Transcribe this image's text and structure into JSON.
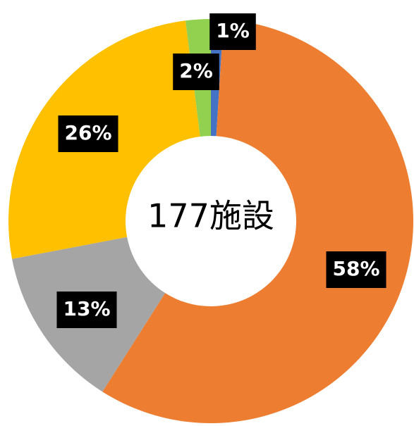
{
  "chart_data": {
    "type": "donut",
    "center_label": "177施設",
    "categories": [
      null,
      null,
      null,
      null,
      null
    ],
    "values": [
      1,
      58,
      13,
      26,
      2
    ],
    "value_labels": [
      "1%",
      "58%",
      "13%",
      "26%",
      "2%"
    ],
    "colors": [
      "#4472c4",
      "#ed7d31",
      "#a5a5a5",
      "#ffc000",
      "#92d050"
    ]
  }
}
